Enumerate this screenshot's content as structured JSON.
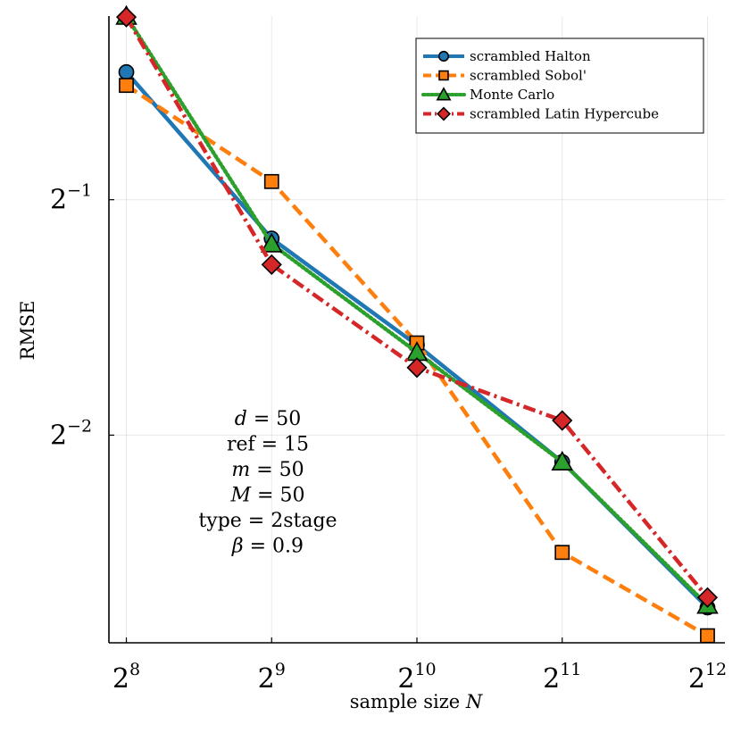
{
  "chart_data": {
    "type": "line",
    "xlabel_main": "sample size ",
    "xlabel_var": "N",
    "ylabel": "RMSE",
    "x_scale": "log2",
    "y_scale": "log2",
    "x": [
      256,
      512,
      1024,
      2048,
      4096
    ],
    "x_tick_labels": [
      {
        "base": "2",
        "exp": "8"
      },
      {
        "base": "2",
        "exp": "9"
      },
      {
        "base": "2",
        "exp": "10"
      },
      {
        "base": "2",
        "exp": "11"
      },
      {
        "base": "2",
        "exp": "12"
      }
    ],
    "y_ticks": [
      {
        "value": 0.5,
        "base": "2",
        "exp": "−1"
      },
      {
        "value": 0.25,
        "base": "2",
        "exp": "−2"
      }
    ],
    "xlim_log2": [
      7.88,
      12.12
    ],
    "ylim_log2": [
      -2.882,
      -0.22
    ],
    "grid": true,
    "legend_position": "top-right",
    "series": [
      {
        "name": "scrambled Halton",
        "color": "#1f77b4",
        "dash": "solid",
        "marker": "circle",
        "values": [
          0.728,
          0.446,
          0.326,
          0.231,
          0.1505
        ]
      },
      {
        "name": "scrambled Sobol'",
        "color": "#ff7f0e",
        "dash": "dashed",
        "marker": "square",
        "values": [
          0.7,
          0.5275,
          0.328,
          0.177,
          0.1385
        ]
      },
      {
        "name": "Monte Carlo",
        "color": "#2ca02c",
        "dash": "dotted",
        "marker": "triangle",
        "values": [
          0.858,
          0.439,
          0.319,
          0.231,
          0.1515
        ]
      },
      {
        "name": "scrambled Latin Hypercube",
        "color": "#d62728",
        "dash": "dashdot",
        "marker": "diamond",
        "values": [
          0.856,
          0.413,
          0.305,
          0.261,
          0.155
        ]
      }
    ],
    "annotation": {
      "lines": [
        {
          "var": "d",
          "text": " = 50"
        },
        {
          "var": "",
          "text": "ref = 15"
        },
        {
          "var": "m",
          "text": " = 50"
        },
        {
          "var": "M",
          "text": " = 50"
        },
        {
          "var": "",
          "text": "type = 2stage"
        },
        {
          "var": "β",
          "text": " = 0.9"
        }
      ]
    }
  }
}
